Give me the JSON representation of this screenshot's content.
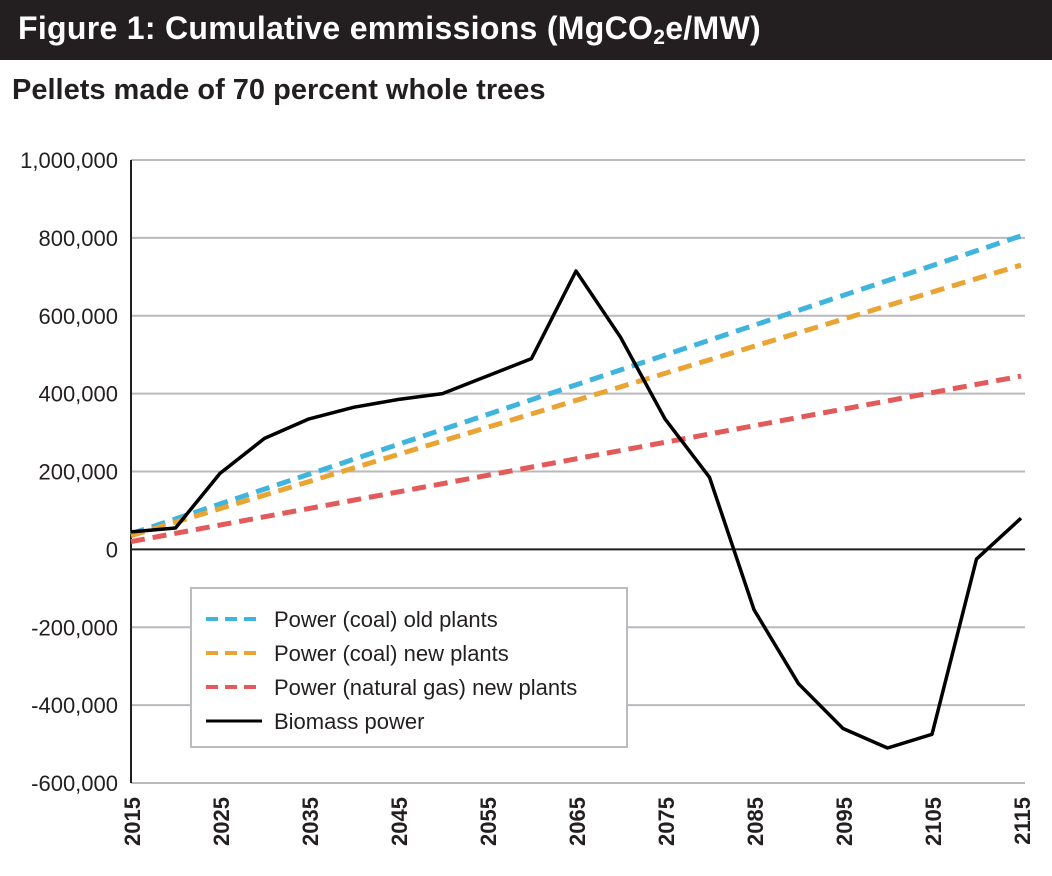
{
  "figure": {
    "banner_prefix": "Figure 1: Cumulative emmissions (MgCO",
    "banner_sub": "2",
    "banner_suffix": "e/MW)",
    "subtitle": "Pellets made of 70 percent whole trees"
  },
  "chart_data": {
    "type": "line",
    "title": "Figure 1: Cumulative emmissions (MgCO2e/MW)",
    "subtitle": "Pellets made of 70 percent whole trees",
    "xlabel": "",
    "ylabel": "",
    "xlim": [
      2015,
      2115
    ],
    "ylim": [
      -600000,
      1000000
    ],
    "x_ticks": [
      2015,
      2025,
      2035,
      2045,
      2055,
      2065,
      2075,
      2085,
      2095,
      2105,
      2115
    ],
    "x_tick_labels": [
      "2015",
      "2025",
      "2035",
      "2045",
      "2055",
      "2065",
      "2075",
      "2085",
      "2095",
      "2105",
      "2115"
    ],
    "y_ticks": [
      -600000,
      -400000,
      -200000,
      0,
      200000,
      400000,
      600000,
      800000,
      1000000
    ],
    "y_tick_labels": [
      "-600,000",
      "-400,000",
      "-200,000",
      "0",
      "200,000",
      "400,000",
      "600,000",
      "800,000",
      "1,000,000"
    ],
    "grid": "horizontal",
    "legend_position": "lower-left",
    "series": [
      {
        "name": "Power (coal) old plants",
        "color": "#3fb5dd",
        "dash": "dashed",
        "x": [
          2015,
          2115
        ],
        "y": [
          40000,
          805000
        ]
      },
      {
        "name": "Power (coal) new plants",
        "color": "#eaa433",
        "dash": "dashed",
        "x": [
          2015,
          2115
        ],
        "y": [
          35000,
          730000
        ]
      },
      {
        "name": "Power (natural gas) new plants",
        "color": "#e25a5a",
        "dash": "dashed",
        "x": [
          2015,
          2115
        ],
        "y": [
          20000,
          445000
        ]
      },
      {
        "name": "Biomass power",
        "color": "#000000",
        "dash": "solid",
        "x": [
          2015,
          2020,
          2025,
          2030,
          2035,
          2040,
          2045,
          2050,
          2055,
          2060,
          2065,
          2070,
          2075,
          2080,
          2085,
          2090,
          2095,
          2100,
          2105,
          2110,
          2115
        ],
        "y": [
          45000,
          55000,
          195000,
          285000,
          335000,
          365000,
          385000,
          400000,
          445000,
          490000,
          715000,
          545000,
          335000,
          185000,
          -155000,
          -345000,
          -460000,
          -510000,
          -475000,
          -25000,
          80000
        ]
      }
    ]
  }
}
